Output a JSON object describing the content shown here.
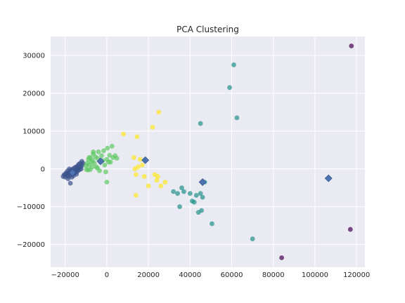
{
  "chart_data": {
    "type": "scatter",
    "title": "PCA Clustering",
    "xlabel": "",
    "ylabel": "",
    "xlim": [
      -27000,
      124000
    ],
    "ylim": [
      -26000,
      35000
    ],
    "xticks": [
      -20000,
      0,
      20000,
      40000,
      60000,
      80000,
      100000,
      120000
    ],
    "yticks": [
      -20000,
      -10000,
      0,
      10000,
      20000,
      30000
    ],
    "xtick_labels": [
      "−20000",
      "0",
      "20000",
      "40000",
      "60000",
      "80000",
      "100000",
      "120000"
    ],
    "ytick_labels": [
      "−20000",
      "−10000",
      "0",
      "10000",
      "20000",
      "30000"
    ],
    "grid": true,
    "background": "#eaeaf2",
    "series": [
      {
        "color": "#3b528b",
        "points": [
          [
            -21000,
            -2000
          ],
          [
            -20500,
            -1500
          ],
          [
            -20000,
            -2200
          ],
          [
            -19500,
            -1000
          ],
          [
            -19000,
            -1800
          ],
          [
            -18800,
            -500
          ],
          [
            -18500,
            -1200
          ],
          [
            -18200,
            -2000
          ],
          [
            -18000,
            0
          ],
          [
            -17800,
            -800
          ],
          [
            -17500,
            -1500
          ],
          [
            -17300,
            -300
          ],
          [
            -17000,
            -1000
          ],
          [
            -16800,
            -2200
          ],
          [
            -16500,
            -500
          ],
          [
            -16300,
            0
          ],
          [
            -16000,
            -1200
          ],
          [
            -15800,
            -700
          ],
          [
            -15500,
            300
          ],
          [
            -15300,
            -1000
          ],
          [
            -15000,
            -300
          ],
          [
            -14800,
            500
          ],
          [
            -14500,
            -800
          ],
          [
            -14200,
            0
          ],
          [
            -14000,
            800
          ],
          [
            -13800,
            -500
          ],
          [
            -13500,
            1200
          ],
          [
            -13300,
            300
          ],
          [
            -13000,
            -200
          ],
          [
            -12800,
            1500
          ],
          [
            -12500,
            600
          ],
          [
            -12300,
            0
          ],
          [
            -12000,
            2000
          ],
          [
            -11800,
            1000
          ],
          [
            -11500,
            1500
          ],
          [
            -17500,
            -3800
          ],
          [
            -19800,
            -1400
          ],
          [
            -18600,
            -2600
          ],
          [
            -16000,
            -1800
          ],
          [
            -14600,
            -1400
          ]
        ]
      },
      {
        "color": "#5ec962",
        "points": [
          [
            -10000,
            800
          ],
          [
            -9500,
            1500
          ],
          [
            -9000,
            -300
          ],
          [
            -8800,
            2500
          ],
          [
            -8500,
            1000
          ],
          [
            -8000,
            -200
          ],
          [
            -7800,
            3000
          ],
          [
            -7500,
            1800
          ],
          [
            -7000,
            500
          ],
          [
            -6800,
            2200
          ],
          [
            -6500,
            4000
          ],
          [
            -6000,
            1500
          ],
          [
            -5500,
            3200
          ],
          [
            -5000,
            500
          ],
          [
            -4500,
            2800
          ],
          [
            -4000,
            4500
          ],
          [
            -3500,
            -500
          ],
          [
            -3000,
            1800
          ],
          [
            -2500,
            3500
          ],
          [
            -2000,
            2200
          ],
          [
            -1500,
            4800
          ],
          [
            -1000,
            1000
          ],
          [
            -500,
            -800
          ],
          [
            0,
            2500
          ],
          [
            300,
            5500
          ],
          [
            800,
            1800
          ],
          [
            1300,
            3600
          ],
          [
            1800,
            1800
          ],
          [
            2500,
            6000
          ],
          [
            3000,
            3000
          ],
          [
            4000,
            3500
          ],
          [
            4800,
            2800
          ],
          [
            0,
            -3500
          ],
          [
            -8500,
            3000
          ],
          [
            -9800,
            -200
          ],
          [
            -6500,
            4500
          ],
          [
            -4500,
            200
          ]
        ]
      },
      {
        "color": "#fde725",
        "points": [
          [
            8000,
            9200
          ],
          [
            13000,
            3000
          ],
          [
            14000,
            -1500
          ],
          [
            14500,
            8500
          ],
          [
            15000,
            500
          ],
          [
            16000,
            2500
          ],
          [
            17000,
            1000
          ],
          [
            18000,
            -2000
          ],
          [
            20000,
            -4500
          ],
          [
            22000,
            11000
          ],
          [
            23000,
            -1500
          ],
          [
            24000,
            -3000
          ],
          [
            24500,
            -2000
          ],
          [
            25000,
            15000
          ],
          [
            26000,
            -4500
          ],
          [
            28000,
            -3500
          ],
          [
            14000,
            -7000
          ],
          [
            13500,
            0
          ]
        ]
      },
      {
        "color": "#21918c",
        "points": [
          [
            32000,
            -6000
          ],
          [
            34000,
            -6500
          ],
          [
            35000,
            -10000
          ],
          [
            36000,
            -5000
          ],
          [
            37000,
            -6000
          ],
          [
            40000,
            -6500
          ],
          [
            41000,
            -8500
          ],
          [
            42000,
            -8800
          ],
          [
            43000,
            -7000
          ],
          [
            44000,
            -11500
          ],
          [
            45000,
            -6500
          ],
          [
            45500,
            -11000
          ],
          [
            46000,
            -7500
          ],
          [
            47000,
            -3500
          ],
          [
            45000,
            12000
          ],
          [
            50500,
            -14500
          ],
          [
            59000,
            21500
          ],
          [
            61000,
            27500
          ],
          [
            62500,
            13500
          ],
          [
            70000,
            -18500
          ]
        ]
      },
      {
        "color": "#440154",
        "points": [
          [
            84000,
            -23500
          ],
          [
            117500,
            32500
          ],
          [
            117000,
            -16000
          ]
        ]
      }
    ],
    "centroids": {
      "color": "#4c72b0",
      "points": [
        [
          -16500,
          -1000
        ],
        [
          -3000,
          2000
        ],
        [
          18500,
          2300
        ],
        [
          46000,
          -3500
        ],
        [
          106500,
          -2500
        ]
      ]
    }
  }
}
